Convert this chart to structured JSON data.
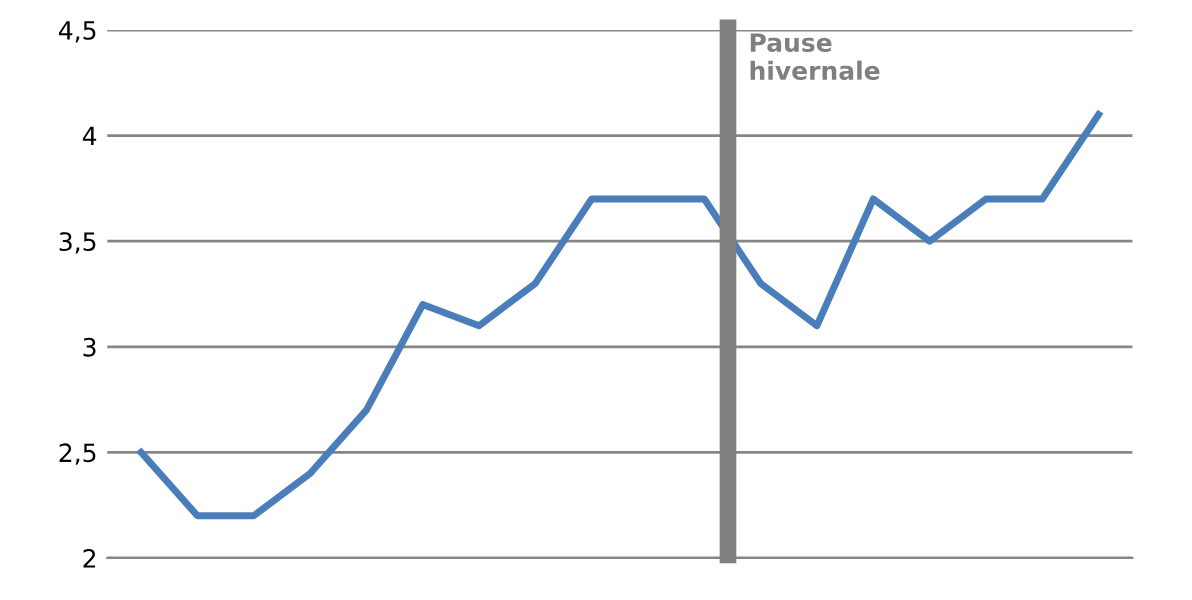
{
  "chart_data": {
    "type": "line",
    "categories": [
      null,
      null,
      null,
      null,
      null,
      null,
      null,
      null,
      null,
      null,
      null,
      null,
      null,
      null,
      null,
      null,
      null,
      null
    ],
    "series": [
      {
        "color": "#4a7ebb",
        "values": [
          2.5,
          2.2,
          2.2,
          2.4,
          2.7,
          3.2,
          3.1,
          3.3,
          3.7,
          3.7,
          3.7,
          3.3,
          3.1,
          3.7,
          3.5,
          3.7,
          3.7,
          4.1
        ]
      }
    ],
    "ylim": [
      2,
      4.5
    ],
    "yticks": [
      {
        "value": 2,
        "label": "2"
      },
      {
        "value": 2.5,
        "label": "2,5"
      },
      {
        "value": 3,
        "label": "3"
      },
      {
        "value": 3.5,
        "label": "3,5"
      },
      {
        "value": 4,
        "label": "4"
      },
      {
        "value": 4.5,
        "label": "4,5"
      }
    ],
    "grid": "y",
    "legend": false,
    "marker": "none",
    "line_style": "solid",
    "annotations": [
      "Pause\nhivernale"
    ]
  }
}
